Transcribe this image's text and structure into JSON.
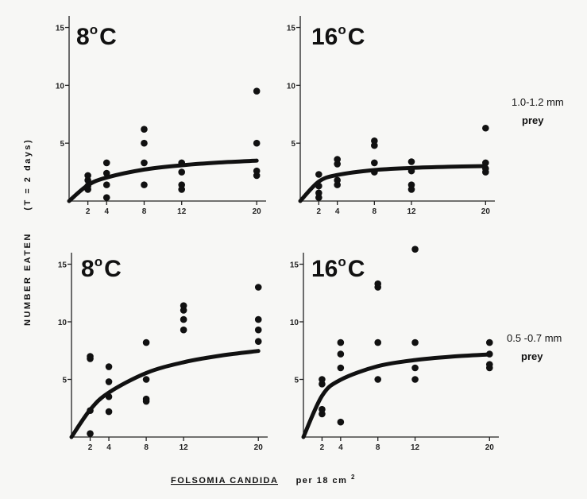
{
  "chart_data": [
    {
      "type": "scatter",
      "panel": "top-left",
      "title": "8°C",
      "title_base": "8",
      "title_deg": "o",
      "title_unit": "C",
      "x_ticks": [
        2,
        4,
        8,
        12,
        20
      ],
      "y_ticks": [
        5,
        10,
        15
      ],
      "xlim": [
        0,
        21
      ],
      "ylim": [
        0,
        16
      ],
      "grid": false,
      "points": [
        [
          2,
          1.0
        ],
        [
          2,
          1.3
        ],
        [
          2,
          1.8
        ],
        [
          2,
          2.2
        ],
        [
          4,
          0.3
        ],
        [
          4,
          1.4
        ],
        [
          4,
          2.4
        ],
        [
          4,
          3.3
        ],
        [
          8,
          1.4
        ],
        [
          8,
          3.3
        ],
        [
          8,
          5.0
        ],
        [
          8,
          6.2
        ],
        [
          12,
          1.0
        ],
        [
          12,
          1.4
        ],
        [
          12,
          2.5
        ],
        [
          12,
          3.3
        ],
        [
          20,
          2.2
        ],
        [
          20,
          2.6
        ],
        [
          20,
          5.0
        ],
        [
          20,
          9.5
        ]
      ],
      "curve": [
        [
          0,
          0
        ],
        [
          2,
          1.37
        ],
        [
          4,
          2.03
        ],
        [
          8,
          2.72
        ],
        [
          12,
          3.09
        ],
        [
          16,
          3.33
        ],
        [
          20,
          3.49
        ]
      ]
    },
    {
      "type": "scatter",
      "panel": "top-right",
      "title": "16°C",
      "title_base": "16",
      "title_deg": "o",
      "title_unit": "C",
      "x_ticks": [
        2,
        4,
        8,
        12,
        20
      ],
      "y_ticks": [
        5,
        10,
        15
      ],
      "xlim": [
        0,
        21
      ],
      "ylim": [
        0,
        16
      ],
      "grid": false,
      "points": [
        [
          2,
          0.3
        ],
        [
          2,
          0.7
        ],
        [
          2,
          1.3
        ],
        [
          2,
          2.3
        ],
        [
          4,
          1.4
        ],
        [
          4,
          1.8
        ],
        [
          4,
          3.2
        ],
        [
          4,
          3.6
        ],
        [
          8,
          2.5
        ],
        [
          8,
          3.3
        ],
        [
          8,
          4.8
        ],
        [
          8,
          5.2
        ],
        [
          12,
          1.0
        ],
        [
          12,
          1.4
        ],
        [
          12,
          2.6
        ],
        [
          12,
          3.4
        ],
        [
          20,
          2.5
        ],
        [
          20,
          2.8
        ],
        [
          20,
          3.3
        ],
        [
          20,
          6.3
        ]
      ],
      "curve": [
        [
          0,
          0
        ],
        [
          2,
          1.68
        ],
        [
          4,
          2.25
        ],
        [
          8,
          2.68
        ],
        [
          12,
          2.86
        ],
        [
          16,
          2.96
        ],
        [
          20,
          3.02
        ]
      ]
    },
    {
      "type": "scatter",
      "panel": "bottom-left",
      "title": "8°C",
      "title_base": "8",
      "title_deg": "o",
      "title_unit": "C",
      "x_ticks": [
        2,
        4,
        8,
        12,
        20
      ],
      "y_ticks": [
        5,
        10,
        15
      ],
      "xlim": [
        0,
        21
      ],
      "ylim": [
        0,
        16
      ],
      "grid": false,
      "points": [
        [
          2,
          0.3
        ],
        [
          2,
          2.3
        ],
        [
          2,
          6.8
        ],
        [
          2,
          7.0
        ],
        [
          4,
          2.2
        ],
        [
          4,
          3.5
        ],
        [
          4,
          4.8
        ],
        [
          4,
          6.1
        ],
        [
          8,
          3.1
        ],
        [
          8,
          3.3
        ],
        [
          8,
          5.0
        ],
        [
          8,
          8.2
        ],
        [
          12,
          9.3
        ],
        [
          12,
          10.2
        ],
        [
          12,
          11.0
        ],
        [
          12,
          11.4
        ],
        [
          20,
          8.3
        ],
        [
          20,
          9.3
        ],
        [
          20,
          10.2
        ],
        [
          20,
          13.0
        ]
      ],
      "curve": [
        [
          0,
          0
        ],
        [
          2,
          2.37
        ],
        [
          4,
          3.86
        ],
        [
          8,
          5.56
        ],
        [
          12,
          6.49
        ],
        [
          16,
          7.07
        ],
        [
          20,
          7.47
        ]
      ]
    },
    {
      "type": "scatter",
      "panel": "bottom-right",
      "title": "16°C",
      "title_base": "16",
      "title_deg": "o",
      "title_unit": "C",
      "x_ticks": [
        2,
        4,
        8,
        12,
        20
      ],
      "y_ticks": [
        5,
        10,
        15
      ],
      "xlim": [
        0,
        21
      ],
      "ylim": [
        0,
        16
      ],
      "grid": false,
      "points": [
        [
          2,
          2.0
        ],
        [
          2,
          2.4
        ],
        [
          2,
          4.6
        ],
        [
          2,
          5.0
        ],
        [
          4,
          1.3
        ],
        [
          4,
          6.0
        ],
        [
          4,
          7.2
        ],
        [
          4,
          8.2
        ],
        [
          8,
          5.0
        ],
        [
          8,
          8.2
        ],
        [
          8,
          13.0
        ],
        [
          8,
          13.3
        ],
        [
          12,
          5.0
        ],
        [
          12,
          6.0
        ],
        [
          12,
          8.2
        ],
        [
          12,
          16.3
        ],
        [
          20,
          6.0
        ],
        [
          20,
          6.3
        ],
        [
          20,
          7.2
        ],
        [
          20,
          8.2
        ]
      ],
      "curve": [
        [
          0,
          0
        ],
        [
          2,
          3.58
        ],
        [
          4,
          4.97
        ],
        [
          8,
          6.15
        ],
        [
          12,
          6.68
        ],
        [
          16,
          6.98
        ],
        [
          20,
          7.17
        ]
      ]
    }
  ],
  "labels": {
    "y_axis_main": "NUMBER EATEN",
    "y_axis_sub": "(T = 2 days)",
    "x_axis_species": "FOLSOMIA CANDIDA",
    "x_axis_rest": "per 18 cm",
    "x_axis_sup": "2",
    "prey_large_size": "1.0-1.2 mm",
    "prey_large_word": "prey",
    "prey_small_size": "0.5 -0.7 mm",
    "prey_small_word": "prey"
  }
}
